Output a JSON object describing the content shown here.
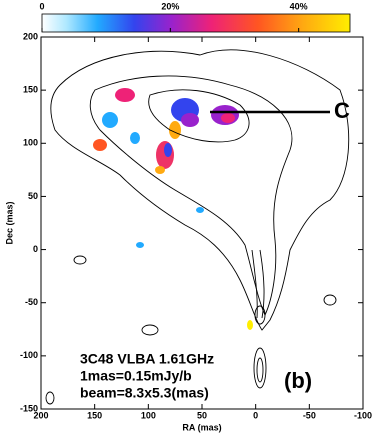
{
  "chart_data": {
    "type": "image",
    "xlabel": "RA (mas)",
    "ylabel": "Dec (mas)",
    "xlim": [
      200,
      -100
    ],
    "ylim": [
      -150,
      200
    ],
    "xticks": [
      200,
      150,
      100,
      50,
      0,
      -50,
      -100
    ],
    "yticks": [
      -150,
      -100,
      -50,
      0,
      50,
      100,
      150,
      200
    ],
    "colorbar": {
      "lim": [
        0,
        48
      ],
      "ticks": [
        0,
        {
          "value": 20,
          "label": "20%"
        },
        {
          "value": 40,
          "label": "40%"
        }
      ]
    },
    "annotations": [
      "3C48 VLBA 1.61GHz",
      "1mas=0.15mJy/b",
      "beam=8.3x5.3(mas)",
      "(b)",
      "C"
    ]
  }
}
